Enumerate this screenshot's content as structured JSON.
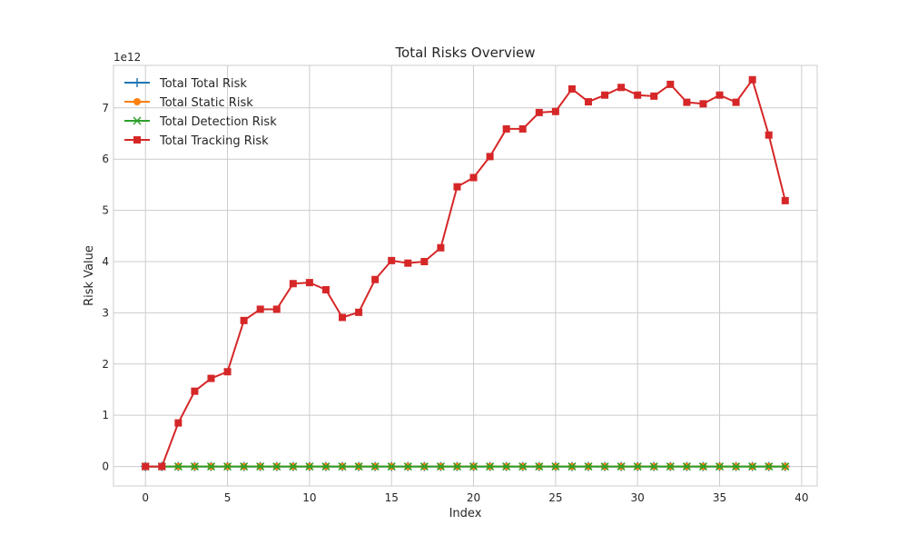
{
  "chart_data": {
    "type": "line",
    "title": "Total Risks Overview",
    "xlabel": "Index",
    "ylabel": "Risk Value",
    "y_offset_label": "1e12",
    "y_multiplier": 1000000000000,
    "xlim": [
      -1.95,
      40.95
    ],
    "ylim": [
      -0.38,
      7.83
    ],
    "x_ticks": [
      0,
      5,
      10,
      15,
      20,
      25,
      30,
      35,
      40
    ],
    "y_ticks": [
      0,
      1,
      2,
      3,
      4,
      5,
      6,
      7
    ],
    "grid": true,
    "legend_position": "upper left",
    "x": [
      0,
      1,
      2,
      3,
      4,
      5,
      6,
      7,
      8,
      9,
      10,
      11,
      12,
      13,
      14,
      15,
      16,
      17,
      18,
      19,
      20,
      21,
      22,
      23,
      24,
      25,
      26,
      27,
      28,
      29,
      30,
      31,
      32,
      33,
      34,
      35,
      36,
      37,
      38,
      39
    ],
    "series": [
      {
        "name": "Total Total Risk",
        "color": "#1f77b4",
        "marker": "plus",
        "values": [
          0,
          0,
          0,
          0,
          0,
          0,
          0,
          0,
          0,
          0,
          0,
          0,
          0,
          0,
          0,
          0,
          0,
          0,
          0,
          0,
          0,
          0,
          0,
          0,
          0,
          0,
          0,
          0,
          0,
          0,
          0,
          0,
          0,
          0,
          0,
          0,
          0,
          0,
          0,
          0
        ]
      },
      {
        "name": "Total Static Risk",
        "color": "#ff7f0e",
        "marker": "circle",
        "values": [
          0,
          0,
          0,
          0,
          0,
          0,
          0,
          0,
          0,
          0,
          0,
          0,
          0,
          0,
          0,
          0,
          0,
          0,
          0,
          0,
          0,
          0,
          0,
          0,
          0,
          0,
          0,
          0,
          0,
          0,
          0,
          0,
          0,
          0,
          0,
          0,
          0,
          0,
          0,
          0
        ]
      },
      {
        "name": "Total Detection Risk",
        "color": "#2ca02c",
        "marker": "x",
        "values": [
          0,
          0,
          0,
          0,
          0,
          0,
          0,
          0,
          0,
          0,
          0,
          0,
          0,
          0,
          0,
          0,
          0,
          0,
          0,
          0,
          0,
          0,
          0,
          0,
          0,
          0,
          0,
          0,
          0,
          0,
          0,
          0,
          0,
          0,
          0,
          0,
          0,
          0,
          0,
          0
        ]
      },
      {
        "name": "Total Tracking Risk",
        "color": "#d62728",
        "marker": "square",
        "values": [
          0,
          0,
          0.85,
          1.47,
          1.72,
          1.85,
          2.85,
          3.07,
          3.07,
          3.57,
          3.59,
          3.45,
          2.91,
          3.01,
          3.65,
          4.02,
          3.97,
          4.0,
          4.27,
          5.46,
          5.64,
          6.05,
          6.59,
          6.59,
          6.91,
          6.93,
          7.37,
          7.12,
          7.25,
          7.4,
          7.25,
          7.23,
          7.46,
          7.11,
          7.08,
          7.25,
          7.11,
          7.55,
          6.47,
          5.19
        ]
      }
    ]
  }
}
